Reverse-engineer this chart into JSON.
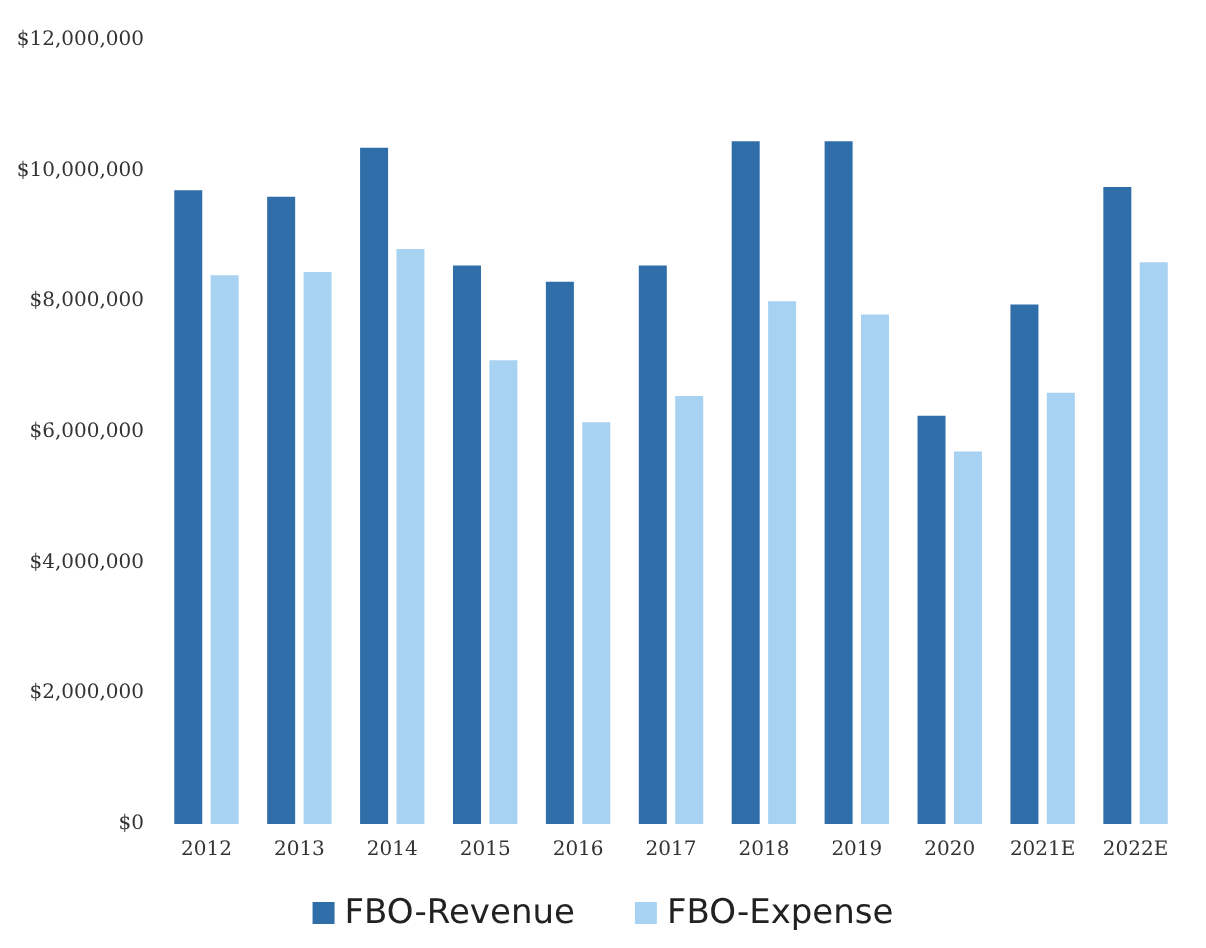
{
  "chart_data": {
    "type": "bar",
    "categories": [
      "2012",
      "2013",
      "2014",
      "2015",
      "2016",
      "2017",
      "2018",
      "2019",
      "2020",
      "2021E",
      "2022E"
    ],
    "series": [
      {
        "name": "FBO-Revenue",
        "color": "#2f6ea8",
        "values": [
          9700000,
          9600000,
          10350000,
          8550000,
          8300000,
          8550000,
          10450000,
          10450000,
          6250000,
          7950000,
          9750000
        ]
      },
      {
        "name": "FBO-Expense",
        "color": "#a8d2f2",
        "values": [
          8400000,
          8450000,
          8800000,
          7100000,
          6150000,
          6550000,
          8000000,
          7800000,
          5700000,
          6600000,
          8600000
        ]
      }
    ],
    "ylim": [
      0,
      12000000
    ],
    "yticks": [
      {
        "value": 0,
        "label": "$0"
      },
      {
        "value": 2000000,
        "label": "$2,000,000"
      },
      {
        "value": 4000000,
        "label": "$4,000,000"
      },
      {
        "value": 6000000,
        "label": "$6,000,000"
      },
      {
        "value": 8000000,
        "label": "$8,000,000"
      },
      {
        "value": 10000000,
        "label": "$10,000,000"
      },
      {
        "value": 12000000,
        "label": "$12,000,000"
      }
    ],
    "grid": false,
    "legend": "bottom"
  }
}
